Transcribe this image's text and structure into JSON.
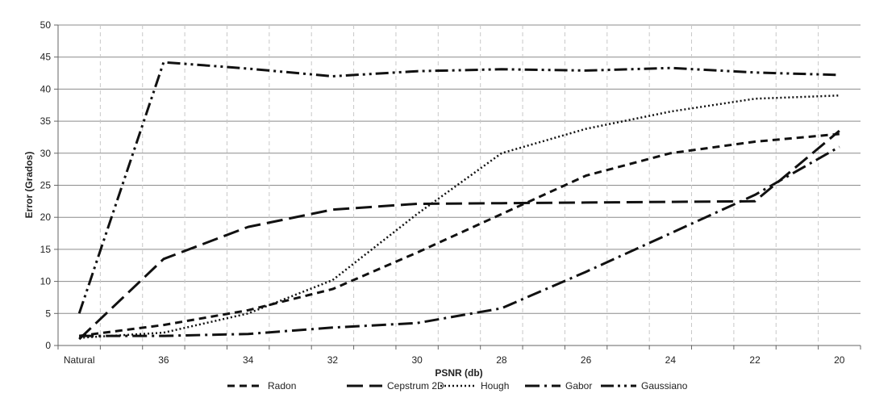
{
  "chart_data": {
    "type": "line",
    "title": "",
    "xlabel": "PSNR  (db)",
    "ylabel": "Error  (Grados)",
    "categories": [
      "Natural",
      "",
      "36",
      "",
      "34",
      "",
      "32",
      "",
      "30",
      "",
      "28",
      "",
      "26",
      "",
      "24",
      "",
      "22",
      "",
      "20"
    ],
    "ylim": [
      0,
      50
    ],
    "yticks": [
      0,
      5,
      10,
      15,
      20,
      25,
      30,
      35,
      40,
      45,
      50
    ],
    "grid": true,
    "legend_position": "bottom",
    "series": [
      {
        "name": "Radon",
        "dash": "short-dash",
        "points": [
          [
            0,
            1.5
          ],
          [
            2,
            3.2
          ],
          [
            4,
            5.5
          ],
          [
            6,
            8.8
          ],
          [
            8,
            14.5
          ],
          [
            10,
            20.5
          ],
          [
            12,
            26.5
          ],
          [
            14,
            30.0
          ],
          [
            16,
            31.8
          ],
          [
            18,
            33.0
          ]
        ]
      },
      {
        "name": "Cepstrum 2D",
        "dash": "long-dash",
        "points": [
          [
            0,
            1.0
          ],
          [
            2,
            13.5
          ],
          [
            4,
            18.5
          ],
          [
            6,
            21.2
          ],
          [
            8,
            22.1
          ],
          [
            10,
            22.2
          ],
          [
            12,
            22.3
          ],
          [
            14,
            22.4
          ],
          [
            16,
            22.5
          ],
          [
            18,
            33.5
          ]
        ]
      },
      {
        "name": "Hough",
        "dash": "dotted",
        "points": [
          [
            0,
            1.2
          ],
          [
            2,
            2.0
          ],
          [
            4,
            5.0
          ],
          [
            6,
            10.2
          ],
          [
            8,
            20.5
          ],
          [
            10,
            30.0
          ],
          [
            12,
            33.8
          ],
          [
            14,
            36.5
          ],
          [
            16,
            38.5
          ],
          [
            18,
            39.0
          ]
        ]
      },
      {
        "name": "Gabor",
        "dash": "dash-dot",
        "points": [
          [
            0,
            1.5
          ],
          [
            2,
            1.5
          ],
          [
            4,
            1.8
          ],
          [
            6,
            2.8
          ],
          [
            8,
            3.5
          ],
          [
            10,
            5.8
          ],
          [
            12,
            11.5
          ],
          [
            14,
            17.5
          ],
          [
            16,
            23.5
          ],
          [
            18,
            31.0
          ]
        ]
      },
      {
        "name": "Gaussiano",
        "dash": "dash-dot-dot",
        "points": [
          [
            0,
            5.0
          ],
          [
            2,
            44.2
          ],
          [
            4,
            43.2
          ],
          [
            6,
            42.0
          ],
          [
            8,
            42.8
          ],
          [
            10,
            43.1
          ],
          [
            12,
            42.9
          ],
          [
            14,
            43.3
          ],
          [
            16,
            42.6
          ],
          [
            18,
            42.2
          ]
        ]
      }
    ]
  }
}
